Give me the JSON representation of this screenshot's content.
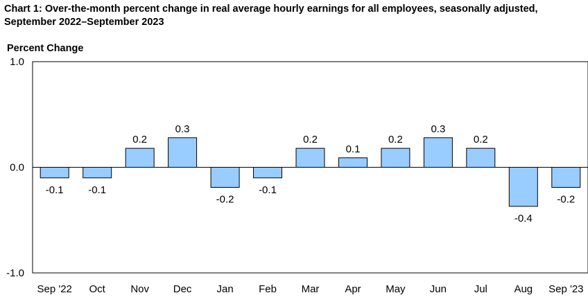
{
  "chart_data": {
    "type": "bar",
    "title": "Chart 1: Over-the-month percent change in real average hourly earnings for all employees, seasonally adjusted, September 2022–September 2023",
    "ylabel": "Percent Change",
    "xlabel": "",
    "ylim": [
      -1.0,
      1.0
    ],
    "yticks": [
      "1.0",
      "0.0",
      "-1.0"
    ],
    "ytick_values": [
      1.0,
      0.0,
      -1.0
    ],
    "categories": [
      "Sep '22",
      "Oct",
      "Nov",
      "Dec",
      "Jan",
      "Feb",
      "Mar",
      "Apr",
      "May",
      "Jun",
      "Jul",
      "Aug",
      "Sep '23"
    ],
    "values": [
      -0.1,
      -0.1,
      0.18,
      0.28,
      -0.19,
      -0.1,
      0.18,
      0.09,
      0.18,
      0.28,
      0.18,
      -0.37,
      -0.19
    ],
    "labels": [
      "-0.1",
      "-0.1",
      "0.2",
      "0.3",
      "-0.2",
      "-0.1",
      "0.2",
      "0.1",
      "0.2",
      "0.3",
      "0.2",
      "-0.4",
      "-0.2"
    ],
    "bar_color": "#99ccff",
    "grid": false,
    "legend": "none"
  }
}
